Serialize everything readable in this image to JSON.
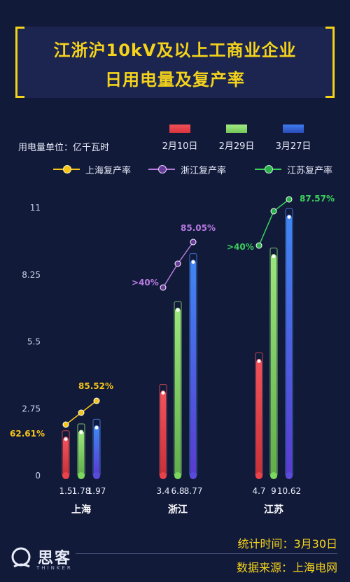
{
  "title": {
    "line1": "江浙沪10kV及以上工商业企业",
    "line2": "日用电量及复产率"
  },
  "unit_label": "用电量单位：亿千瓦时",
  "colors": {
    "background": "#121a3a",
    "accent": "#f5d31b",
    "date1": "#f0525a",
    "date2": "#8fe070",
    "date3": "#3a6ae0"
  },
  "chart_data": {
    "type": "bar",
    "title": "江浙沪10kV及以上工商业企业日用电量及复产率",
    "ylabel": "用电量单位：亿千瓦时",
    "ylim": [
      0,
      11
    ],
    "yticks": [
      "0",
      "2.75",
      "5.5",
      "8.25",
      "11"
    ],
    "categories": [
      "上海",
      "浙江",
      "江苏"
    ],
    "series": [
      {
        "name": "2月10日",
        "values": [
          1.5,
          3.4,
          4.7
        ]
      },
      {
        "name": "2月29日",
        "values": [
          1.78,
          6.8,
          9
        ]
      },
      {
        "name": "3月27日",
        "values": [
          1.97,
          8.77,
          10.62
        ]
      }
    ],
    "value_labels": [
      [
        "1.5",
        "1.78",
        "1.97"
      ],
      [
        "3.4",
        "6.8",
        "8.77"
      ],
      [
        "4.7",
        "9",
        "10.62"
      ]
    ],
    "rate_series": [
      {
        "name": "上海复产率",
        "start_label": "62.61%",
        "end_label": "85.52%",
        "color": "#f5c518"
      },
      {
        "name": "浙江复产率",
        "start_label": ">40%",
        "end_label": "85.05%",
        "color": "#b57ae0"
      },
      {
        "name": "江苏复产率",
        "start_label": ">40%",
        "end_label": "87.57%",
        "color": "#3ad05a"
      }
    ],
    "grid": false,
    "legend": "top"
  },
  "footer": {
    "time": "统计时间：3月30日",
    "source": "数据来源：上海电网"
  },
  "logo": {
    "name": "思客",
    "sub": "THINKER"
  }
}
